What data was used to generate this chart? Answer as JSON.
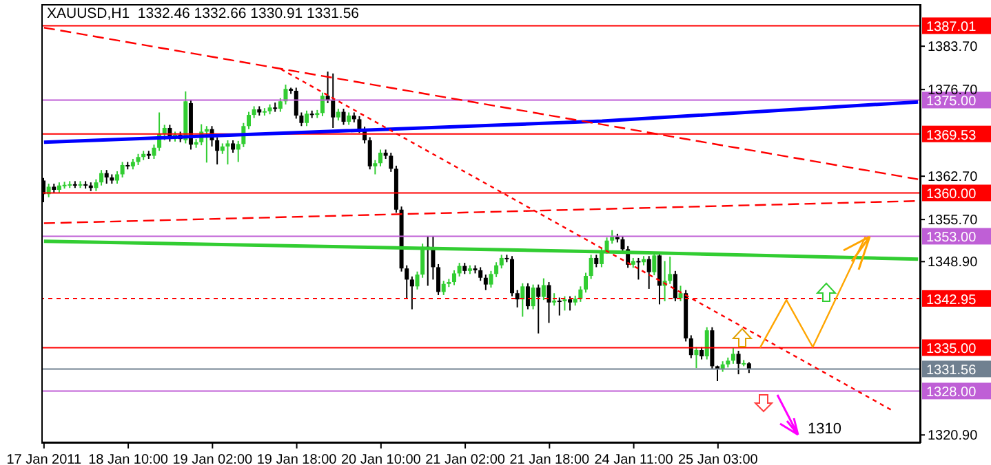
{
  "chart_data": {
    "type": "candlestick",
    "title": "XAUUSD,H1  1332.46 1332.66 1330.91 1331.56",
    "categories": [
      "17 Jan 2011",
      null,
      null,
      null,
      null,
      null,
      null,
      null,
      null,
      null,
      null,
      null,
      null,
      null,
      null,
      null,
      "18 Jan 10:00",
      null,
      null,
      null,
      null,
      null,
      null,
      null,
      null,
      null,
      null,
      null,
      null,
      null,
      null,
      null,
      "19 Jan 02:00",
      null,
      null,
      null,
      null,
      null,
      null,
      null,
      null,
      null,
      null,
      null,
      null,
      null,
      null,
      null,
      "19 Jan 18:00",
      null,
      null,
      null,
      null,
      null,
      null,
      null,
      null,
      null,
      null,
      null,
      null,
      null,
      null,
      null,
      "20 Jan 10:00",
      null,
      null,
      null,
      null,
      null,
      null,
      null,
      null,
      null,
      null,
      null,
      null,
      null,
      null,
      null,
      "21 Jan 02:00",
      null,
      null,
      null,
      null,
      null,
      null,
      null,
      null,
      null,
      null,
      null,
      null,
      null,
      null,
      null,
      "21 Jan 18:00",
      null,
      null,
      null,
      null,
      null,
      null,
      null,
      null,
      null,
      null,
      null,
      null,
      null,
      null,
      null,
      "24 Jan 11:00",
      null,
      null,
      null,
      null,
      null,
      null,
      null,
      null,
      null,
      null,
      null,
      null,
      null,
      null,
      null,
      "25 Jan 03:00",
      null,
      null,
      null,
      null,
      null,
      null,
      null,
      null,
      null,
      null,
      null,
      null,
      null,
      null,
      null,
      null,
      null,
      null,
      null,
      null,
      null,
      null,
      null,
      null,
      null,
      null,
      null,
      null,
      null,
      null,
      null,
      null,
      null,
      null,
      null,
      null,
      null,
      null
    ],
    "colors": [
      "#000000",
      "#32cd32",
      "#000000",
      "#32cd32",
      "#32cd32",
      "#32cd32",
      "#000000",
      "#32cd32",
      "#000000",
      "#000000",
      "#32cd32",
      "#32cd32",
      "#000000",
      "#000000",
      "#32cd32",
      "#32cd32",
      "#000000",
      "#32cd32",
      "#32cd32",
      "#32cd32",
      "#000000",
      "#32cd32",
      "#32cd32",
      "#32cd32",
      "#000000",
      "#32cd32",
      "#000000",
      "#32cd32",
      "#000000",
      "#32cd32",
      "#32cd32",
      "#32cd32",
      "#000000",
      "#000000",
      "#32cd32",
      "#32cd32",
      "#000000",
      "#32cd32",
      "#32cd32",
      "#32cd32",
      "#32cd32",
      "#000000",
      "#32cd32",
      "#32cd32",
      "#000000",
      "#32cd32",
      "#32cd32",
      "#000000",
      "#000000",
      "#000000",
      "#32cd32",
      "#000000",
      "#32cd32",
      "#32cd32",
      "#000000",
      "#000000",
      "#32cd32",
      "#000000",
      "#32cd32",
      "#000000",
      "#000000",
      "#000000",
      "#000000",
      "#32cd32",
      "#32cd32",
      "#000000",
      "#000000",
      "#000000",
      "#000000",
      "#000000",
      "#000000",
      "#32cd32",
      "#32cd32",
      "#000000",
      "#000000",
      "#000000",
      "#32cd32",
      "#32cd32",
      "#32cd32",
      "#32cd32",
      "#000000",
      "#32cd32",
      "#000000",
      "#000000",
      "#000000",
      "#32cd32",
      "#32cd32",
      "#32cd32",
      "#000000",
      "#000000",
      "#000000",
      "#32cd32",
      "#000000",
      "#32cd32",
      "#000000",
      "#32cd32",
      "#000000",
      "#32cd32",
      "#000000",
      "#32cd32",
      "#000000",
      "#32cd32",
      "#32cd32",
      "#32cd32",
      "#32cd32",
      "#000000",
      "#32cd32",
      "#32cd32",
      "#32cd32",
      "#000000",
      "#000000",
      "#000000",
      "#32cd32",
      "#000000",
      "#32cd32",
      "#000000",
      "#32cd32",
      "#000000",
      "#32cd32",
      "#32cd32",
      "#000000",
      "#32cd32",
      "#000000",
      "#000000",
      "#32cd32",
      "#000000",
      "#32cd32",
      "#000000",
      "#000000",
      "#32cd32",
      "#32cd32",
      "#32cd32",
      "#000000",
      "#32cd32",
      "#000000",
      null,
      null,
      null,
      null,
      null,
      null,
      null,
      null,
      null,
      null,
      null,
      null,
      null,
      null,
      null,
      null,
      null,
      null,
      null,
      null,
      null,
      null,
      null,
      null,
      null,
      null,
      null,
      null,
      null,
      null,
      null,
      null
    ],
    "ohlc": [
      [
        1362.0,
        1362.4,
        1358.5,
        1359.8
      ],
      [
        1359.8,
        1361.5,
        1359.3,
        1361.0
      ],
      [
        1361.0,
        1361.5,
        1360.0,
        1360.5
      ],
      [
        1360.5,
        1361.7,
        1360.0,
        1361.2
      ],
      [
        1361.2,
        1361.8,
        1360.7,
        1361.3
      ],
      [
        1361.3,
        1361.9,
        1360.8,
        1361.4
      ],
      [
        1361.4,
        1361.9,
        1360.8,
        1361.3
      ],
      [
        1361.3,
        1361.9,
        1360.8,
        1361.4
      ],
      [
        1361.4,
        1361.9,
        1360.7,
        1361.2
      ],
      [
        1361.2,
        1361.7,
        1360.3,
        1360.8
      ],
      [
        1360.8,
        1362.2,
        1360.3,
        1361.7
      ],
      [
        1361.7,
        1363.7,
        1361.2,
        1363.2
      ],
      [
        1363.2,
        1363.7,
        1361.5,
        1362.5
      ],
      [
        1362.5,
        1363.0,
        1361.5,
        1362.0
      ],
      [
        1362.0,
        1363.5,
        1361.5,
        1363.0
      ],
      [
        1363.0,
        1365.0,
        1362.5,
        1364.5
      ],
      [
        1364.5,
        1365.0,
        1363.8,
        1364.3
      ],
      [
        1364.3,
        1365.5,
        1363.8,
        1365.0
      ],
      [
        1365.0,
        1366.3,
        1364.5,
        1365.8
      ],
      [
        1365.8,
        1366.8,
        1365.3,
        1366.3
      ],
      [
        1366.3,
        1366.8,
        1365.5,
        1366.0
      ],
      [
        1366.0,
        1367.8,
        1365.5,
        1367.3
      ],
      [
        1367.3,
        1373.0,
        1366.8,
        1369.5
      ],
      [
        1369.5,
        1371.0,
        1368.5,
        1370.5
      ],
      [
        1370.5,
        1371.0,
        1368.3,
        1368.8
      ],
      [
        1368.8,
        1369.9,
        1368.3,
        1369.4
      ],
      [
        1369.4,
        1369.9,
        1368.2,
        1368.7
      ],
      [
        1368.5,
        1376.4,
        1368.0,
        1374.8
      ],
      [
        1374.5,
        1375.0,
        1367.0,
        1367.8
      ],
      [
        1367.8,
        1368.7,
        1367.3,
        1368.2
      ],
      [
        1368.2,
        1371.1,
        1367.7,
        1369.9
      ],
      [
        1369.9,
        1370.8,
        1364.9,
        1370.3
      ],
      [
        1370.3,
        1370.8,
        1367.5,
        1368.5
      ],
      [
        1368.5,
        1369.0,
        1364.6,
        1366.8
      ],
      [
        1366.8,
        1368.0,
        1366.3,
        1367.5
      ],
      [
        1367.5,
        1368.5,
        1364.6,
        1368.0
      ],
      [
        1368.0,
        1368.5,
        1366.5,
        1367.0
      ],
      [
        1367.0,
        1368.4,
        1365.0,
        1367.9
      ],
      [
        1367.9,
        1371.3,
        1367.4,
        1370.8
      ],
      [
        1370.8,
        1373.1,
        1370.3,
        1372.6
      ],
      [
        1372.6,
        1374.0,
        1372.1,
        1373.5
      ],
      [
        1373.5,
        1374.0,
        1372.5,
        1373.0
      ],
      [
        1373.0,
        1373.7,
        1372.5,
        1373.2
      ],
      [
        1373.2,
        1374.3,
        1372.7,
        1373.8
      ],
      [
        1373.8,
        1374.6,
        1373.1,
        1373.6
      ],
      [
        1373.6,
        1375.3,
        1373.1,
        1374.8
      ],
      [
        1374.8,
        1377.5,
        1374.3,
        1376.8
      ],
      [
        1376.8,
        1377.0,
        1376.0,
        1376.5
      ],
      [
        1376.5,
        1377.0,
        1372.0,
        1372.5
      ],
      [
        1372.5,
        1373.0,
        1370.8,
        1371.3
      ],
      [
        1371.3,
        1373.3,
        1370.8,
        1372.8
      ],
      [
        1372.8,
        1373.3,
        1372.1,
        1372.6
      ],
      [
        1372.6,
        1373.4,
        1372.1,
        1372.9
      ],
      [
        1372.9,
        1376.2,
        1372.4,
        1375.7
      ],
      [
        1375.7,
        1379.6,
        1374.5,
        1375.0
      ],
      [
        1375.0,
        1379.3,
        1370.5,
        1372.2
      ],
      [
        1372.2,
        1373.6,
        1371.7,
        1373.1
      ],
      [
        1373.1,
        1373.6,
        1371.0,
        1371.5
      ],
      [
        1371.5,
        1373.0,
        1371.0,
        1372.5
      ],
      [
        1372.5,
        1373.0,
        1371.4,
        1371.9
      ],
      [
        1371.9,
        1372.4,
        1369.7,
        1370.2
      ],
      [
        1370.2,
        1370.7,
        1368.0,
        1368.5
      ],
      [
        1368.5,
        1369.0,
        1363.8,
        1364.3
      ],
      [
        1364.3,
        1365.3,
        1363.0,
        1364.8
      ],
      [
        1364.8,
        1367.0,
        1364.3,
        1366.5
      ],
      [
        1366.5,
        1367.0,
        1365.5,
        1366.0
      ],
      [
        1366.0,
        1366.5,
        1363.4,
        1363.9
      ],
      [
        1363.9,
        1364.4,
        1356.8,
        1357.3
      ],
      [
        1357.3,
        1357.8,
        1347.3,
        1347.8
      ],
      [
        1347.8,
        1348.3,
        1343.0,
        1346.0
      ],
      [
        1346.0,
        1346.5,
        1341.2,
        1344.9
      ],
      [
        1344.9,
        1347.3,
        1344.4,
        1346.8
      ],
      [
        1346.8,
        1351.8,
        1346.3,
        1351.3
      ],
      [
        1351.3,
        1353.0,
        1345.0,
        1351.0
      ],
      [
        1351.0,
        1353.0,
        1346.0,
        1348.0
      ],
      [
        1348.0,
        1348.5,
        1343.5,
        1344.0
      ],
      [
        1344.0,
        1345.8,
        1343.5,
        1345.3
      ],
      [
        1345.3,
        1346.1,
        1344.8,
        1345.6
      ],
      [
        1345.6,
        1347.5,
        1345.1,
        1347.0
      ],
      [
        1347.0,
        1348.7,
        1346.5,
        1348.2
      ],
      [
        1348.2,
        1348.7,
        1346.9,
        1347.4
      ],
      [
        1347.4,
        1348.3,
        1346.9,
        1347.8
      ],
      [
        1347.8,
        1348.3,
        1347.0,
        1347.5
      ],
      [
        1347.5,
        1348.0,
        1345.8,
        1346.3
      ],
      [
        1346.3,
        1346.8,
        1344.3,
        1345.2
      ],
      [
        1345.2,
        1347.4,
        1344.7,
        1346.9
      ],
      [
        1346.9,
        1348.8,
        1346.4,
        1348.3
      ],
      [
        1348.3,
        1350.0,
        1347.8,
        1349.5
      ],
      [
        1349.5,
        1350.0,
        1348.8,
        1349.3
      ],
      [
        1349.3,
        1349.8,
        1343.3,
        1343.8
      ],
      [
        1343.8,
        1344.3,
        1341.5,
        1342.8
      ],
      [
        1342.8,
        1345.4,
        1340.0,
        1344.9
      ],
      [
        1344.9,
        1345.4,
        1341.2,
        1341.7
      ],
      [
        1341.7,
        1345.2,
        1341.2,
        1344.7
      ],
      [
        1344.7,
        1345.2,
        1337.3,
        1343.2
      ],
      [
        1343.2,
        1346.2,
        1342.7,
        1345.1
      ],
      [
        1345.1,
        1345.6,
        1339.0,
        1342.3
      ],
      [
        1342.3,
        1343.8,
        1341.8,
        1342.6
      ],
      [
        1342.6,
        1343.1,
        1340.2,
        1342.5
      ],
      [
        1342.5,
        1343.3,
        1341.0,
        1342.8
      ],
      [
        1342.8,
        1343.3,
        1341.0,
        1342.3
      ],
      [
        1342.3,
        1343.4,
        1341.8,
        1342.9
      ],
      [
        1342.9,
        1344.9,
        1342.4,
        1344.4
      ],
      [
        1344.4,
        1347.1,
        1343.9,
        1346.6
      ],
      [
        1346.6,
        1350.0,
        1346.1,
        1349.5
      ],
      [
        1349.5,
        1350.0,
        1348.0,
        1348.5
      ],
      [
        1348.5,
        1351.2,
        1348.0,
        1350.7
      ],
      [
        1350.7,
        1352.8,
        1350.2,
        1352.3
      ],
      [
        1352.3,
        1354.0,
        1351.8,
        1352.9
      ],
      [
        1352.9,
        1353.4,
        1352.0,
        1352.5
      ],
      [
        1352.5,
        1353.0,
        1350.4,
        1350.9
      ],
      [
        1350.9,
        1351.4,
        1347.9,
        1348.4
      ],
      [
        1348.4,
        1349.5,
        1347.9,
        1349.0
      ],
      [
        1349.0,
        1349.5,
        1346.0,
        1348.8
      ],
      [
        1348.8,
        1349.8,
        1348.3,
        1349.3
      ],
      [
        1349.3,
        1349.8,
        1344.5,
        1347.2
      ],
      [
        1347.2,
        1350.4,
        1346.7,
        1349.9
      ],
      [
        1349.9,
        1350.4,
        1342.0,
        1345.0
      ],
      [
        1345.0,
        1349.0,
        1342.5,
        1345.8
      ],
      [
        1345.8,
        1349.7,
        1345.3,
        1346.9
      ],
      [
        1346.9,
        1347.4,
        1342.5,
        1343.0
      ],
      [
        1343.0,
        1345.0,
        1342.5,
        1343.8
      ],
      [
        1343.8,
        1344.3,
        1336.0,
        1336.5
      ],
      [
        1336.5,
        1337.0,
        1333.3,
        1333.8
      ],
      [
        1333.8,
        1335.1,
        1331.7,
        1334.6
      ],
      [
        1334.6,
        1335.1,
        1333.1,
        1333.6
      ],
      [
        1333.6,
        1338.3,
        1333.1,
        1337.8
      ],
      [
        1337.8,
        1338.3,
        1331.5,
        1332.0
      ],
      [
        1332.0,
        1332.1,
        1329.6,
        1331.6
      ],
      [
        1331.6,
        1332.8,
        1331.1,
        1332.3
      ],
      [
        1332.3,
        1333.4,
        1331.8,
        1332.9
      ],
      [
        1332.9,
        1335.0,
        1332.4,
        1334.0
      ],
      [
        1334.0,
        1334.5,
        1330.7,
        1332.4
      ],
      [
        1332.4,
        1333.0,
        1332.0,
        1332.5
      ],
      [
        1332.46,
        1332.66,
        1330.91,
        1331.56
      ],
      null,
      null,
      null,
      null,
      null,
      null,
      null,
      null,
      null,
      null,
      null,
      null,
      null,
      null,
      null,
      null,
      null,
      null,
      null,
      null,
      null,
      null,
      null,
      null,
      null,
      null,
      null,
      null,
      null,
      null,
      null,
      null
    ],
    "series": [
      {
        "type": "line",
        "color": "#0000ff",
        "values": [
          1368.2,
          null,
          null,
          null,
          null,
          null,
          null,
          null,
          null,
          null,
          null,
          null,
          null,
          null,
          null,
          null,
          null,
          null,
          null,
          null,
          null,
          null,
          null,
          null,
          null,
          null,
          null,
          null,
          null,
          null,
          null,
          null,
          null,
          null,
          null,
          null,
          null,
          null,
          null,
          null,
          null,
          null,
          null,
          null,
          null,
          null,
          null,
          null,
          null,
          null,
          null,
          null,
          null,
          null,
          null,
          null,
          null,
          null,
          null,
          null,
          null,
          null,
          null,
          null,
          null,
          null,
          null,
          null,
          null,
          null,
          null,
          null,
          null,
          null,
          null,
          null,
          null,
          null,
          null,
          null,
          null,
          null,
          null,
          null,
          null,
          null,
          null,
          null,
          null,
          null,
          null,
          null,
          null,
          null,
          null,
          null,
          null,
          null,
          null,
          null,
          null,
          null,
          null,
          null,
          null,
          null,
          1371.6,
          null,
          null,
          null,
          null,
          null,
          null,
          null,
          null,
          null,
          null,
          null,
          null,
          null,
          null,
          null,
          null,
          null,
          null,
          null,
          null,
          null,
          null,
          null,
          null,
          null,
          null,
          null,
          null,
          null,
          null,
          null,
          null,
          null,
          null,
          null,
          null,
          null,
          null,
          null,
          null,
          null,
          null,
          null,
          null,
          null,
          null,
          null,
          null,
          null,
          null,
          null,
          null,
          null,
          null,
          null,
          null,
          null,
          null,
          null,
          1374.7
        ]
      },
      {
        "type": "line",
        "color": "#32cd32",
        "values": [
          1352.2,
          null,
          null,
          null,
          null,
          null,
          null,
          null,
          null,
          null,
          null,
          null,
          null,
          null,
          null,
          null,
          null,
          null,
          null,
          null,
          null,
          null,
          null,
          null,
          null,
          null,
          null,
          null,
          null,
          null,
          null,
          null,
          null,
          null,
          null,
          null,
          null,
          null,
          null,
          null,
          null,
          null,
          null,
          null,
          null,
          null,
          null,
          null,
          null,
          null,
          null,
          null,
          null,
          null,
          null,
          null,
          null,
          null,
          null,
          null,
          null,
          null,
          null,
          null,
          null,
          null,
          null,
          null,
          null,
          null,
          null,
          null,
          null,
          null,
          null,
          null,
          null,
          null,
          null,
          null,
          null,
          null,
          null,
          null,
          null,
          null,
          null,
          null,
          null,
          null,
          null,
          null,
          null,
          null,
          null,
          null,
          null,
          null,
          null,
          null,
          null,
          null,
          null,
          null,
          null,
          null,
          1350.5,
          null,
          null,
          null,
          null,
          null,
          null,
          null,
          null,
          null,
          null,
          null,
          null,
          null,
          null,
          null,
          null,
          null,
          null,
          null,
          null,
          null,
          null,
          null,
          null,
          null,
          null,
          null,
          null,
          null,
          null,
          null,
          null,
          null,
          null,
          null,
          null,
          null,
          null,
          null,
          null,
          null,
          null,
          null,
          null,
          null,
          null,
          null,
          null,
          null,
          null,
          null,
          null,
          null,
          null,
          null,
          null,
          null,
          null,
          null,
          1349.3
        ]
      },
      {
        "type": "line",
        "color": "#ff0000",
        "line_style": "dashed",
        "values": [
          1355.1,
          null,
          null,
          null,
          null,
          null,
          null,
          null,
          null,
          null,
          null,
          null,
          null,
          null,
          null,
          null,
          null,
          null,
          null,
          null,
          null,
          null,
          null,
          null,
          null,
          null,
          null,
          null,
          null,
          null,
          null,
          null,
          null,
          null,
          null,
          null,
          null,
          null,
          null,
          null,
          null,
          null,
          null,
          null,
          null,
          null,
          null,
          null,
          null,
          null,
          null,
          null,
          null,
          null,
          null,
          null,
          null,
          null,
          null,
          null,
          null,
          null,
          null,
          null,
          null,
          null,
          null,
          null,
          null,
          null,
          null,
          null,
          null,
          null,
          null,
          null,
          null,
          null,
          null,
          null,
          null,
          null,
          null,
          null,
          null,
          null,
          null,
          null,
          null,
          null,
          null,
          null,
          null,
          null,
          null,
          null,
          null,
          null,
          null,
          null,
          null,
          null,
          null,
          null,
          null,
          null,
          null,
          null,
          null,
          null,
          null,
          null,
          null,
          null,
          null,
          null,
          null,
          null,
          null,
          null,
          null,
          null,
          null,
          null,
          null,
          null,
          null,
          null,
          null,
          null,
          null,
          null,
          null,
          null,
          null,
          null,
          null,
          null,
          null,
          null,
          null,
          null,
          null,
          null,
          null,
          null,
          null,
          null,
          null,
          null,
          null,
          null,
          null,
          null,
          null,
          null,
          null,
          null,
          null,
          null,
          null,
          null,
          null,
          null,
          null,
          null,
          1358.7
        ]
      },
      {
        "type": "line",
        "color": "#ff0000",
        "line_style": "dashed",
        "values": [
          1386.7,
          null,
          null,
          null,
          null,
          null,
          null,
          null,
          null,
          null,
          null,
          null,
          null,
          null,
          null,
          null,
          null,
          null,
          null,
          null,
          null,
          null,
          null,
          null,
          null,
          null,
          null,
          null,
          null,
          null,
          null,
          null,
          null,
          null,
          null,
          null,
          null,
          null,
          null,
          null,
          null,
          null,
          null,
          null,
          null,
          null,
          null,
          null,
          null,
          null,
          null,
          null,
          null,
          null,
          null,
          null,
          null,
          null,
          null,
          null,
          null,
          null,
          null,
          null,
          null,
          null,
          null,
          null,
          null,
          null,
          null,
          null,
          null,
          null,
          null,
          null,
          null,
          null,
          null,
          null,
          null,
          null,
          null,
          null,
          null,
          null,
          null,
          null,
          null,
          null,
          null,
          null,
          null,
          null,
          null,
          null,
          null,
          null,
          null,
          null,
          null,
          null,
          null,
          null,
          null,
          null,
          null,
          null,
          null,
          null,
          null,
          null,
          null,
          null,
          null,
          null,
          null,
          null,
          null,
          null,
          null,
          null,
          null,
          null,
          null,
          null,
          null,
          null,
          null,
          null,
          null,
          null,
          null,
          null,
          null,
          null,
          null,
          null,
          null,
          null,
          null,
          null,
          null,
          null,
          null,
          null,
          null,
          null,
          null,
          null,
          null,
          null,
          null,
          null,
          null,
          null,
          null,
          null,
          null,
          null,
          null,
          null,
          null,
          null,
          null,
          null,
          1362.2
        ]
      },
      {
        "type": "line",
        "color": "#ff0000",
        "line_style": "dotted",
        "values": [
          null,
          null,
          null,
          null,
          null,
          null,
          null,
          null,
          null,
          null,
          null,
          null,
          null,
          null,
          null,
          null,
          null,
          null,
          null,
          null,
          null,
          null,
          null,
          null,
          null,
          null,
          null,
          null,
          null,
          null,
          null,
          null,
          null,
          null,
          null,
          null,
          null,
          null,
          null,
          null,
          null,
          null,
          null,
          null,
          null,
          1380.0,
          null,
          null,
          null,
          null,
          null,
          null,
          null,
          null,
          null,
          null,
          null,
          null,
          null,
          null,
          null,
          null,
          null,
          null,
          null,
          null,
          null,
          null,
          null,
          null,
          null,
          null,
          null,
          null,
          null,
          null,
          null,
          null,
          null,
          null,
          null,
          null,
          null,
          null,
          null,
          null,
          null,
          null,
          null,
          null,
          null,
          null,
          null,
          null,
          null,
          null,
          null,
          null,
          null,
          null,
          null,
          null,
          null,
          null,
          null,
          null,
          null,
          null,
          null,
          null,
          null,
          null,
          null,
          null,
          null,
          null,
          null,
          null,
          null,
          null,
          null,
          null,
          null,
          null,
          null,
          null,
          null,
          null,
          null,
          null,
          null,
          null,
          null,
          null,
          null,
          null,
          null,
          null,
          null,
          null,
          null,
          null,
          null,
          null,
          null,
          null,
          null,
          null,
          null,
          null,
          null,
          null,
          null,
          null,
          null,
          null,
          null,
          null,
          null,
          null,
          null,
          1324.9,
          null,
          null,
          null,
          null,
          null
        ]
      },
      {
        "type": "line",
        "color": "#ffa500",
        "values": [
          null,
          null,
          null,
          null,
          null,
          null,
          null,
          null,
          null,
          null,
          null,
          null,
          null,
          null,
          null,
          null,
          null,
          null,
          null,
          null,
          null,
          null,
          null,
          null,
          null,
          null,
          null,
          null,
          null,
          null,
          null,
          null,
          null,
          null,
          null,
          null,
          null,
          null,
          null,
          null,
          null,
          null,
          null,
          null,
          null,
          null,
          null,
          null,
          null,
          null,
          null,
          null,
          null,
          null,
          null,
          null,
          null,
          null,
          null,
          null,
          null,
          null,
          null,
          null,
          null,
          null,
          null,
          null,
          null,
          null,
          null,
          null,
          null,
          null,
          null,
          null,
          null,
          null,
          null,
          null,
          null,
          null,
          null,
          null,
          null,
          null,
          null,
          null,
          null,
          null,
          null,
          null,
          null,
          null,
          null,
          null,
          null,
          null,
          null,
          null,
          null,
          null,
          null,
          null,
          null,
          null,
          null,
          null,
          null,
          null,
          null,
          null,
          null,
          null,
          null,
          null,
          null,
          null,
          null,
          null,
          null,
          null,
          null,
          null,
          null,
          null,
          null,
          null,
          null,
          null,
          null,
          null,
          null,
          null,
          null,
          null,
          1335.0,
          null,
          null,
          null,
          null,
          1342.7,
          null,
          null,
          null,
          null,
          1335.1,
          null,
          null,
          null,
          null,
          null,
          null,
          null,
          null,
          null,
          1352.9,
          null,
          null,
          null,
          null,
          null,
          null,
          null,
          null,
          null,
          null
        ]
      }
    ],
    "ref_lines": [
      {
        "axis": "y",
        "value": 1387.01,
        "label": "1387.01",
        "color": "#ff0000"
      },
      {
        "axis": "y",
        "value": 1375.0,
        "label": "1375.00",
        "color": "#bf5fd6"
      },
      {
        "axis": "y",
        "value": 1369.53,
        "label": "1369.53",
        "color": "#ff0000"
      },
      {
        "axis": "y",
        "value": 1360.0,
        "label": "1360.00",
        "color": "#ff0000"
      },
      {
        "axis": "y",
        "value": 1353.0,
        "label": "1353.00",
        "color": "#bf5fd6"
      },
      {
        "axis": "y",
        "value": 1342.95,
        "label": "1342.95",
        "color": "#ff0000",
        "line_style": "dotted"
      },
      {
        "axis": "y",
        "value": 1335.0,
        "label": "1335.00",
        "color": "#ff0000"
      },
      {
        "axis": "y",
        "value": 1331.56,
        "label": "1331.56",
        "color": "#708090"
      },
      {
        "axis": "y",
        "value": 1328.0,
        "label": "1328.00",
        "color": "#bf5fd6"
      }
    ],
    "annotations": [
      "1310"
    ],
    "ylim": [
      1319.6,
      1390.5
    ],
    "yticks": [
      {
        "value": 1383.7,
        "label": "1383.70"
      },
      {
        "value": 1376.7,
        "label": "1376.70"
      },
      {
        "value": 1362.7,
        "label": "1362.70"
      },
      {
        "value": 1355.7,
        "label": "1355.70"
      },
      {
        "value": 1348.9,
        "label": "1348.90"
      },
      {
        "value": 1320.9,
        "label": "1320.90"
      }
    ],
    "legend": false,
    "marker": "none"
  }
}
